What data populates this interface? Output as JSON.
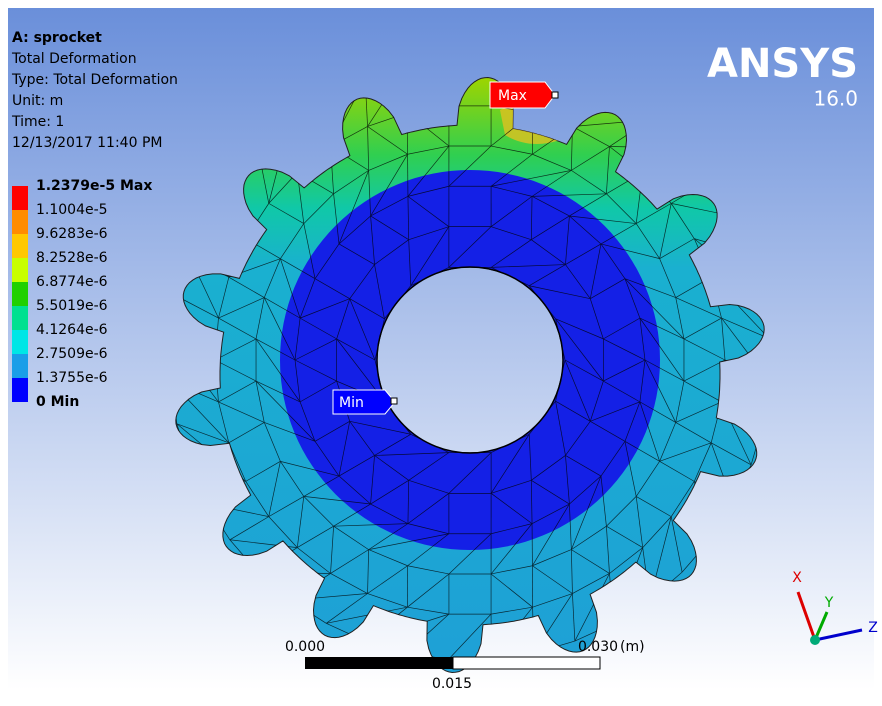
{
  "header": {
    "title": "A: sprocket",
    "lines": [
      "Total Deformation",
      "Type: Total Deformation",
      "Unit: m",
      "Time: 1",
      "12/13/2017 11:40 PM"
    ]
  },
  "legend": {
    "labels": [
      "1.2379e-5 Max",
      "1.1004e-5",
      "9.6283e-6",
      "8.2528e-6",
      "6.8774e-6",
      "5.5019e-6",
      "4.1264e-6",
      "2.7509e-6",
      "1.3755e-6",
      "0 Min"
    ],
    "colors": [
      "#ff0000",
      "#ff8c00",
      "#ffc800",
      "#c8ff00",
      "#20d000",
      "#00e090",
      "#00e6e6",
      "#1a9ee8",
      "#0000ff"
    ]
  },
  "logo": {
    "name": "ANSYS",
    "version": "16.0"
  },
  "probes": {
    "max": "Max",
    "min": "Min"
  },
  "scale_bar": {
    "left": "0.000",
    "right": "0.030",
    "unit": "(m)",
    "middle": "0.015"
  },
  "triad": {
    "x": "X",
    "y": "Y",
    "z": "Z"
  }
}
